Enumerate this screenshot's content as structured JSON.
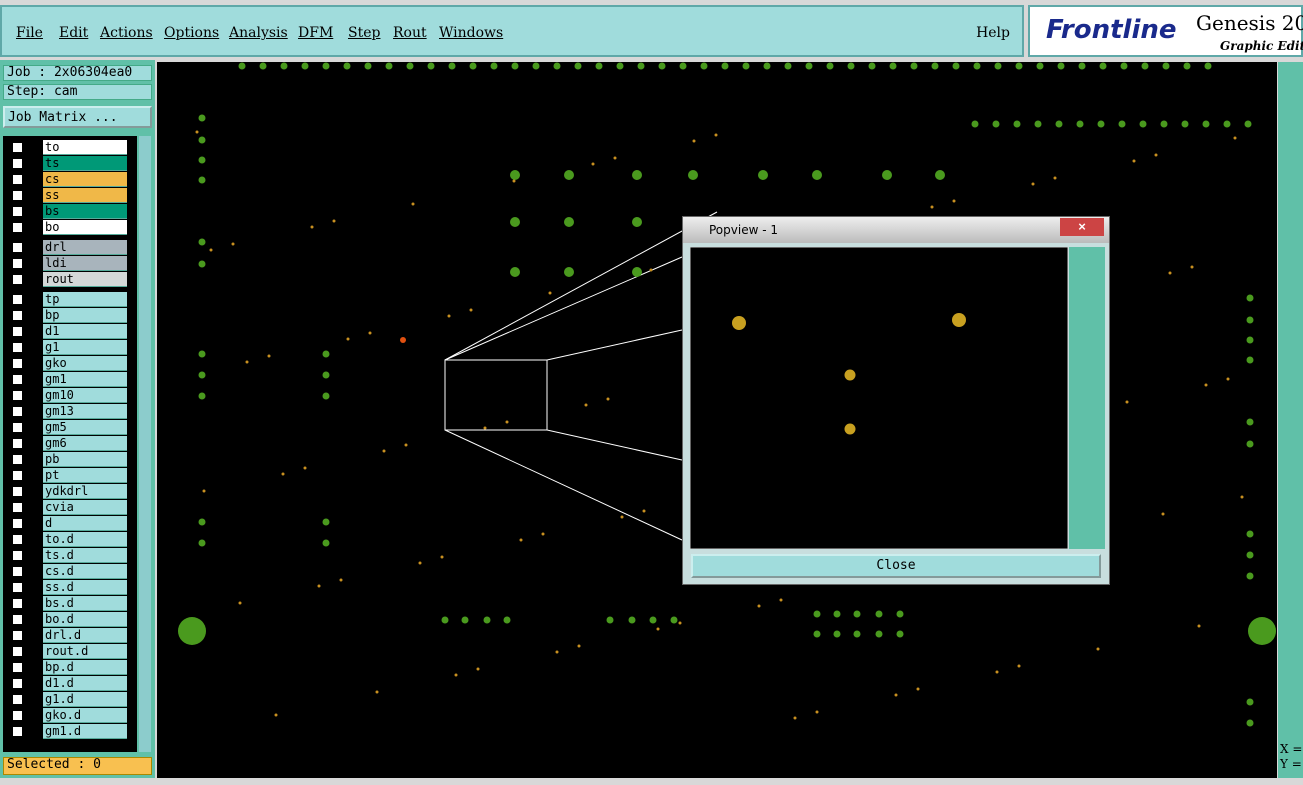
{
  "menu": [
    "File",
    "Edit",
    "Actions",
    "Options",
    "Analysis",
    "DFM",
    "Step",
    "Rout",
    "Windows"
  ],
  "help": "Help",
  "logo": {
    "brand": "Frontline",
    "product": "Genesis 20",
    "subtitle": "Graphic Edito"
  },
  "job": {
    "name": "Job : 2x06304ea0",
    "step": "Step: cam",
    "matrix_button": "Job Matrix ..."
  },
  "layers": [
    {
      "name": "to",
      "color": "#ffffff"
    },
    {
      "name": "ts",
      "color": "#009977"
    },
    {
      "name": "cs",
      "color": "#f0b848"
    },
    {
      "name": "ss",
      "color": "#f0b848"
    },
    {
      "name": "bs",
      "color": "#009977"
    },
    {
      "name": "bo",
      "color": "#ffffff"
    },
    {
      "name": "drl",
      "color": "#a8b4bc"
    },
    {
      "name": "ldi",
      "color": "#a8b4bc"
    },
    {
      "name": "rout",
      "color": "#d4d8d8"
    },
    {
      "name": "tp",
      "color": "#a0dcdc"
    },
    {
      "name": "bp",
      "color": "#a0dcdc"
    },
    {
      "name": "d1",
      "color": "#a0dcdc"
    },
    {
      "name": "g1",
      "color": "#a0dcdc"
    },
    {
      "name": "gko",
      "color": "#a0dcdc"
    },
    {
      "name": "gm1",
      "color": "#a0dcdc"
    },
    {
      "name": "gm10",
      "color": "#a0dcdc"
    },
    {
      "name": "gm13",
      "color": "#a0dcdc"
    },
    {
      "name": "gm5",
      "color": "#a0dcdc"
    },
    {
      "name": "gm6",
      "color": "#a0dcdc"
    },
    {
      "name": "pb",
      "color": "#a0dcdc"
    },
    {
      "name": "pt",
      "color": "#a0dcdc"
    },
    {
      "name": "ydkdrl",
      "color": "#a0dcdc"
    },
    {
      "name": "cvia",
      "color": "#a0dcdc"
    },
    {
      "name": "d",
      "color": "#a0dcdc"
    },
    {
      "name": "to.d",
      "color": "#a0dcdc"
    },
    {
      "name": "ts.d",
      "color": "#a0dcdc"
    },
    {
      "name": "cs.d",
      "color": "#a0dcdc"
    },
    {
      "name": "ss.d",
      "color": "#a0dcdc"
    },
    {
      "name": "bs.d",
      "color": "#a0dcdc"
    },
    {
      "name": "bo.d",
      "color": "#a0dcdc"
    },
    {
      "name": "drl.d",
      "color": "#a0dcdc"
    },
    {
      "name": "rout.d",
      "color": "#a0dcdc"
    },
    {
      "name": "bp.d",
      "color": "#a0dcdc"
    },
    {
      "name": "d1.d",
      "color": "#a0dcdc"
    },
    {
      "name": "g1.d",
      "color": "#a0dcdc"
    },
    {
      "name": "gko.d",
      "color": "#a0dcdc"
    },
    {
      "name": "gm1.d",
      "color": "#a0dcdc"
    }
  ],
  "selected": "Selected : 0",
  "popup": {
    "title": "Popview - 1",
    "close": "Close"
  },
  "coords": {
    "x": "X =",
    "y": "Y ="
  }
}
